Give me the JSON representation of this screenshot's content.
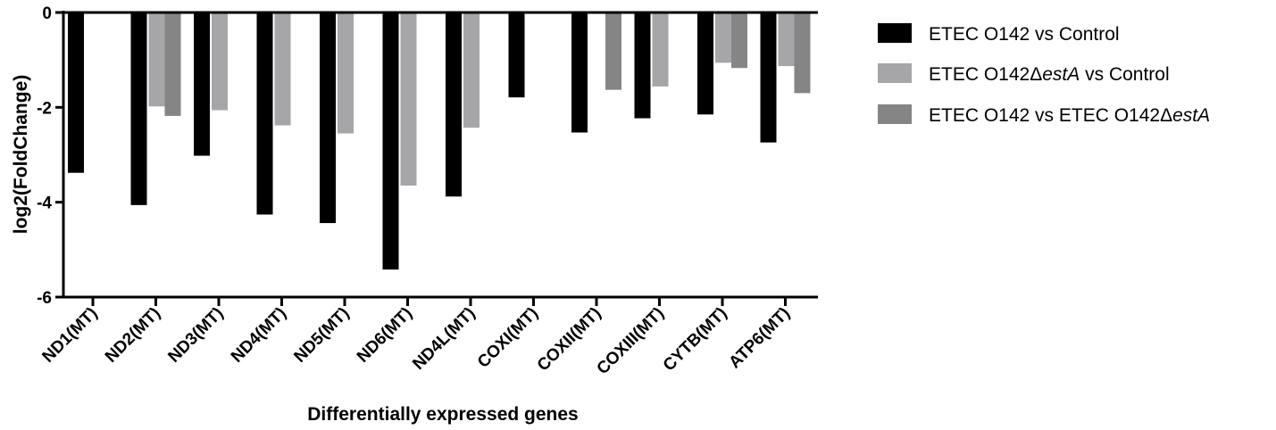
{
  "chart_data": {
    "type": "bar",
    "title": "",
    "xlabel": "Differentially expressed genes",
    "ylabel": "log2(FoldChange)",
    "ylim": [
      -6,
      0
    ],
    "yticks": [
      0,
      -2,
      -4,
      -6
    ],
    "grid": false,
    "legend_position": "right",
    "categories": [
      "ND1(MT)",
      "ND2(MT)",
      "ND3(MT)",
      "ND4(MT)",
      "ND5(MT)",
      "ND6(MT)",
      "ND4L(MT)",
      "COXI(MT)",
      "COXII(MT)",
      "COXIII(MT)",
      "CYTB(MT)",
      "ATP6(MT)"
    ],
    "series": [
      {
        "name": "ETEC O142 vs Control",
        "legend": {
          "prefix": "ETEC O142 vs Control",
          "italic": "",
          "suffix": ""
        },
        "color": "#000000",
        "values": [
          -3.38,
          -4.06,
          -3.02,
          -4.26,
          -4.44,
          -5.42,
          -3.88,
          -1.79,
          -2.53,
          -2.23,
          -2.15,
          -2.74
        ]
      },
      {
        "name": "ETEC O142ΔestA vs Control",
        "legend": {
          "prefix": "ETEC O142Δ",
          "italic": "estA",
          "suffix": " vs Control"
        },
        "color": "#a6a6a8",
        "values": [
          null,
          -1.98,
          -2.06,
          -2.38,
          -2.55,
          -3.65,
          -2.43,
          null,
          null,
          -1.56,
          -1.06,
          -1.13
        ]
      },
      {
        "name": "ETEC O142 vs ETEC O142ΔestA",
        "legend": {
          "prefix": "ETEC O142 vs ETEC O142Δ",
          "italic": "estA",
          "suffix": ""
        },
        "color": "#858585",
        "values": [
          null,
          -2.18,
          null,
          null,
          null,
          null,
          null,
          null,
          -1.63,
          null,
          -1.17,
          -1.7
        ]
      }
    ]
  }
}
